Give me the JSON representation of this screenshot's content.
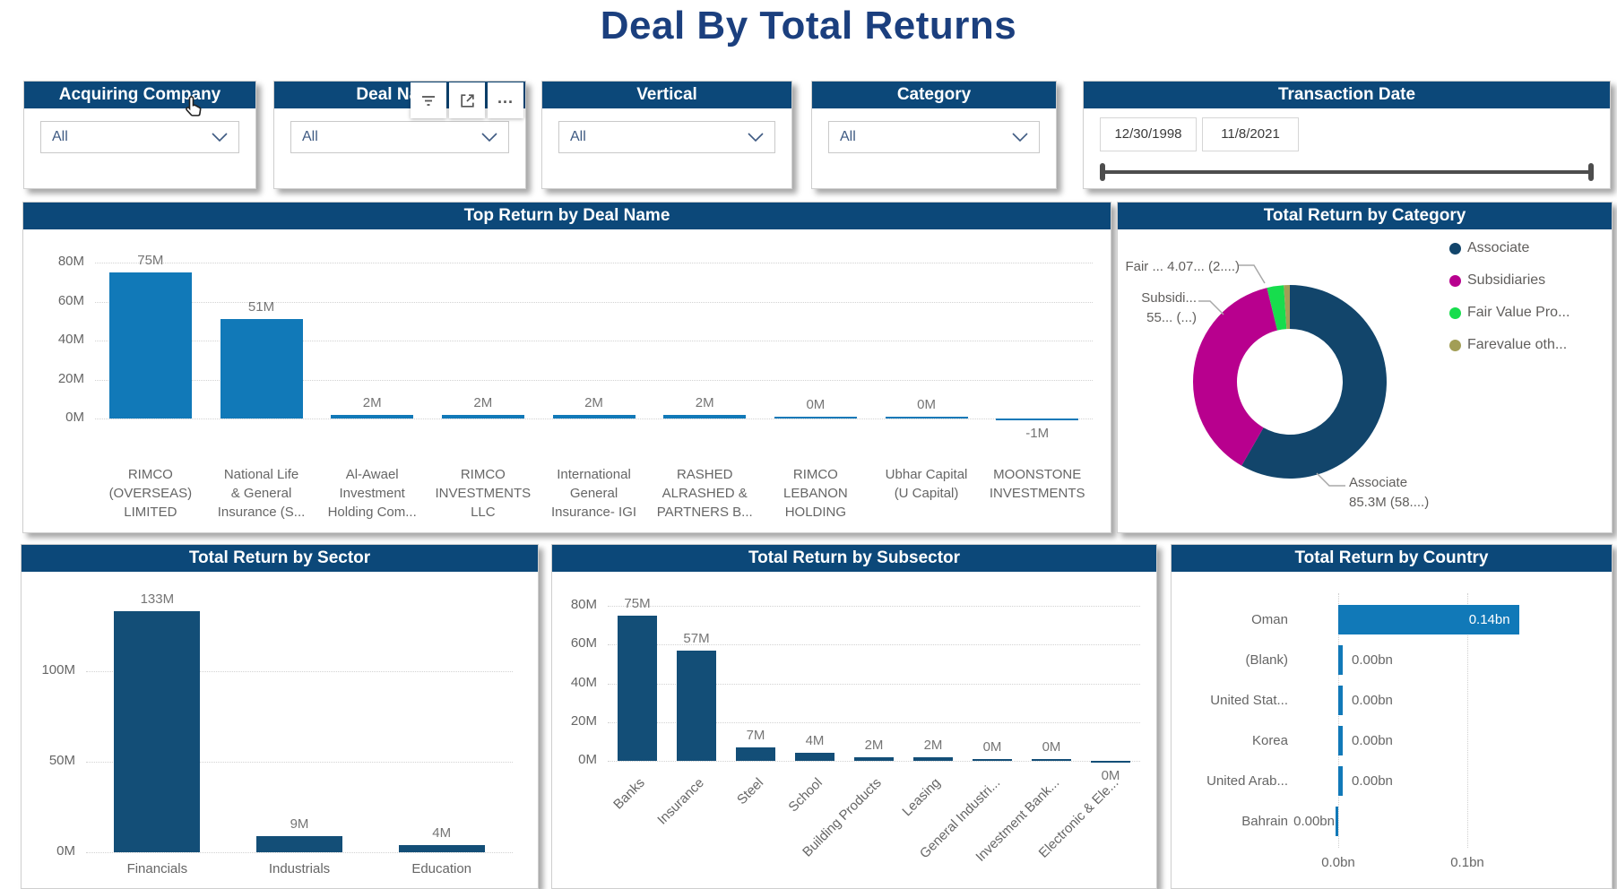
{
  "page": {
    "title": "Deal By Total Returns"
  },
  "colors": {
    "header_bg": "#0C4879",
    "title_text": "#1B3F7E",
    "bar_light": "#1179B8",
    "bar_dark": "#134E77",
    "axis_text": "#666666",
    "value_label_text": "#757575",
    "legend_text": "#605E5C",
    "slicer_text": "#3E5A82"
  },
  "slicers": [
    {
      "label": "Acquiring Company",
      "value": "All"
    },
    {
      "label": "Deal Name",
      "value": "All"
    },
    {
      "label": "Vertical",
      "value": "All"
    },
    {
      "label": "Category",
      "value": "All"
    }
  ],
  "date_slicer": {
    "label": "Transaction Date",
    "start_date": "12/30/1998",
    "end_date": "11/8/2021"
  },
  "hover_toolbar": {
    "icons": [
      "filter-icon",
      "focus-mode-icon",
      "more-options-icon"
    ],
    "more_label": "..."
  },
  "chart_data": [
    {
      "type": "bar",
      "title": "Top Return by Deal Name",
      "categories": [
        [
          "RIMCO",
          "(OVERSEAS)",
          "LIMITED"
        ],
        [
          "National Life",
          "& General",
          "Insurance (S..."
        ],
        [
          "Al-Awael",
          "Investment",
          "Holding Com..."
        ],
        [
          "RIMCO",
          "INVESTMENTS",
          "LLC"
        ],
        [
          "International",
          "General",
          "Insurance- IGI"
        ],
        [
          "RASHED",
          "ALRASHED &",
          "PARTNERS B..."
        ],
        [
          "RIMCO",
          "LEBANON",
          "HOLDING"
        ],
        [
          "Ubhar Capital",
          "(U Capital)"
        ],
        [
          "MOONSTONE",
          "INVESTMENTS"
        ]
      ],
      "values": [
        75,
        51,
        2,
        2,
        2,
        2,
        0.4,
        0.3,
        -1
      ],
      "data_labels": [
        "75M",
        "51M",
        "2M",
        "2M",
        "2M",
        "2M",
        "0M",
        "0M",
        "-1M"
      ],
      "y_ticks": [
        {
          "value": 0,
          "label": "0M"
        },
        {
          "value": 20,
          "label": "20M"
        },
        {
          "value": 40,
          "label": "40M"
        },
        {
          "value": 60,
          "label": "60M"
        },
        {
          "value": 80,
          "label": "80M"
        }
      ],
      "ylim": [
        -5,
        88
      ],
      "grid": "dotted-horizontal"
    },
    {
      "type": "donut",
      "title": "Total Return by Category",
      "slices": [
        {
          "name": "Associate",
          "pct": 58.3,
          "color": "#12456B"
        },
        {
          "name": "Subsidiaries",
          "pct": 37.9,
          "color": "#B8008E"
        },
        {
          "name": "Fair Value Pro...",
          "pct": 2.8,
          "color": "#17DD4D"
        },
        {
          "name": "Farevalue oth...",
          "pct": 1.0,
          "color": "#A29E56"
        }
      ],
      "legend": [
        "Associate",
        "Subsidiaries",
        "Fair Value Pro...",
        "Farevalue oth..."
      ],
      "legend_position": "right",
      "callouts": [
        {
          "slice": "Fair Value Pro...",
          "lines": [
            "Fair ... 4.07... (2....)"
          ]
        },
        {
          "slice": "Subsidiaries",
          "lines": [
            "Subsidi...",
            "55... (...)"
          ]
        },
        {
          "slice": "Associate",
          "lines": [
            "Associate",
            "85.3M (58....)"
          ]
        }
      ]
    },
    {
      "type": "bar",
      "title": "Total Return by Sector",
      "categories": [
        [
          "Financials"
        ],
        [
          "Industrials"
        ],
        [
          "Education"
        ]
      ],
      "values": [
        133,
        9,
        4
      ],
      "data_labels": [
        "133M",
        "9M",
        "4M"
      ],
      "y_ticks": [
        {
          "value": 0,
          "label": "0M"
        },
        {
          "value": 50,
          "label": "50M"
        },
        {
          "value": 100,
          "label": "100M"
        }
      ],
      "ylim": [
        0,
        145
      ],
      "grid": "dotted-horizontal"
    },
    {
      "type": "bar",
      "title": "Total Return by Subsector",
      "categories": [
        "Banks",
        "Insurance",
        "Steel",
        "School",
        "Building Products",
        "Leasing",
        "General Industri...",
        "Investment Bank...",
        "Electronic & Ele..."
      ],
      "values": [
        75,
        57,
        7,
        4,
        2,
        2,
        0.5,
        0.5,
        -0.4
      ],
      "data_labels": [
        "75M",
        "57M",
        "7M",
        "4M",
        "2M",
        "2M",
        "0M",
        "0M",
        "0M"
      ],
      "y_ticks": [
        {
          "value": 0,
          "label": "0M"
        },
        {
          "value": 20,
          "label": "20M"
        },
        {
          "value": 40,
          "label": "40M"
        },
        {
          "value": 60,
          "label": "60M"
        },
        {
          "value": 80,
          "label": "80M"
        }
      ],
      "ylim": [
        -3,
        90
      ],
      "rotated_labels": true,
      "grid": "dotted-horizontal"
    },
    {
      "type": "barh",
      "title": "Total Return by Country",
      "categories": [
        "Oman",
        "(Blank)",
        "United Stat...",
        "Korea",
        "United Arab...",
        "Bahrain"
      ],
      "values": [
        0.14,
        0.003,
        0.003,
        0.002,
        0.002,
        -0.001
      ],
      "data_labels": [
        "0.14bn",
        "0.00bn",
        "0.00bn",
        "0.00bn",
        "0.00bn",
        "0.00bn"
      ],
      "x_ticks": [
        {
          "value": 0,
          "label": "0.0bn"
        },
        {
          "value": 0.1,
          "label": "0.1bn"
        }
      ],
      "xlim": [
        0,
        0.15
      ],
      "grid": "dotted-vertical"
    }
  ]
}
